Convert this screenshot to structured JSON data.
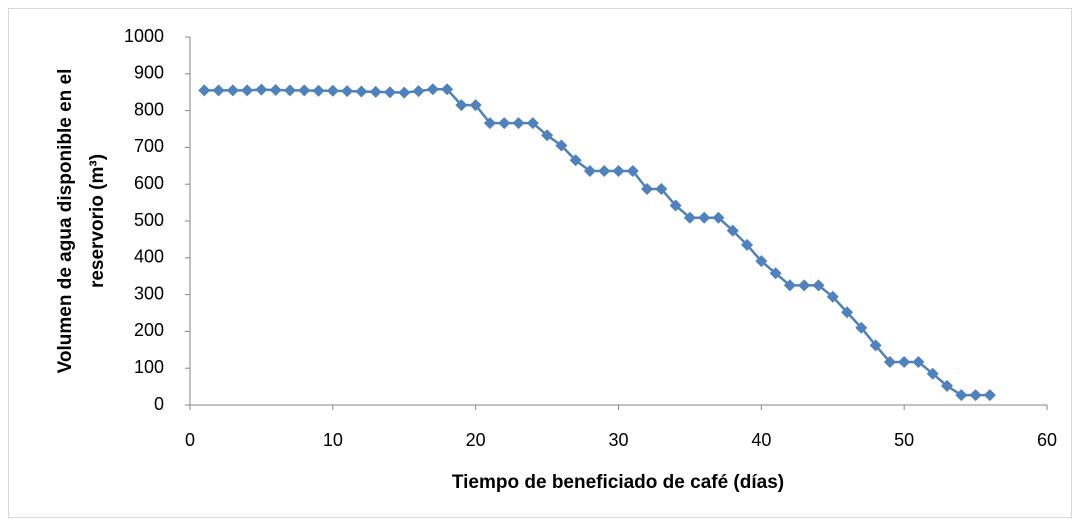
{
  "chart_data": {
    "type": "line",
    "xlabel": "Tiempo de beneficiado de café (días)",
    "ylabel": [
      "Volumen de agua disponible en el",
      "reservorio (m³)"
    ],
    "x": [
      1,
      2,
      3,
      4,
      5,
      6,
      7,
      8,
      9,
      10,
      11,
      12,
      13,
      14,
      15,
      16,
      17,
      18,
      19,
      20,
      21,
      22,
      23,
      24,
      25,
      26,
      27,
      28,
      29,
      30,
      31,
      32,
      33,
      34,
      35,
      36,
      37,
      38,
      39,
      40,
      41,
      42,
      43,
      44,
      45,
      46,
      47,
      48,
      49,
      50,
      51,
      52,
      53,
      54,
      55,
      56
    ],
    "series": [
      {
        "color": "#4f81bd",
        "values": [
          855,
          855,
          855,
          855,
          857,
          856,
          855,
          855,
          854,
          854,
          853,
          852,
          851,
          850,
          849,
          853,
          858,
          858,
          815,
          815,
          766,
          766,
          766,
          766,
          733,
          705,
          665,
          636,
          636,
          636,
          636,
          587,
          587,
          542,
          509,
          509,
          509,
          474,
          435,
          391,
          358,
          325,
          325,
          325,
          294,
          252,
          210,
          162,
          117,
          117,
          117,
          85,
          52,
          27,
          27,
          27
        ]
      }
    ],
    "xlim": [
      0,
      60
    ],
    "xticks": [
      0,
      10,
      20,
      30,
      40,
      50,
      60
    ],
    "ylim": [
      0,
      1000
    ],
    "yticks": [
      0,
      100,
      200,
      300,
      400,
      500,
      600,
      700,
      800,
      900,
      1000
    ]
  }
}
